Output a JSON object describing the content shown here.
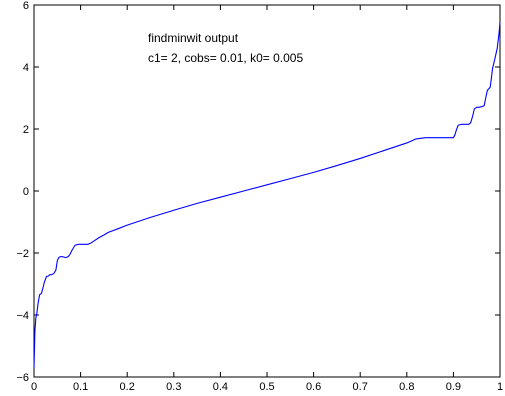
{
  "chart_data": {
    "type": "line",
    "title": "",
    "xlabel": "",
    "ylabel": "",
    "xlim": [
      0,
      1
    ],
    "ylim": [
      -6,
      6
    ],
    "xticks": [
      0,
      0.1,
      0.2,
      0.3,
      0.4,
      0.5,
      0.6,
      0.7,
      0.8,
      0.9,
      1
    ],
    "xtick_labels": [
      "0",
      "0.1",
      "0.2",
      "0.3",
      "0.4",
      "0.5",
      "0.6",
      "0.7",
      "0.8",
      "0.9",
      "1"
    ],
    "yticks": [
      -6,
      -4,
      -2,
      0,
      2,
      4,
      6
    ],
    "ytick_labels": [
      "−6",
      "−4",
      "−2",
      "0",
      "2",
      "4",
      "6"
    ],
    "grid": false,
    "annotations": [
      "findminwit output",
      "c1= 2, cobs= 0.01, k0= 0.005"
    ],
    "series": [
      {
        "color": "#0000ff",
        "x": [
          0.0,
          0.002,
          0.004,
          0.006,
          0.009,
          0.012,
          0.016,
          0.018,
          0.022,
          0.027,
          0.03,
          0.034,
          0.038,
          0.043,
          0.047,
          0.05,
          0.053,
          0.056,
          0.062,
          0.068,
          0.073,
          0.077,
          0.082,
          0.088,
          0.095,
          0.105,
          0.115,
          0.122,
          0.13,
          0.14,
          0.15,
          0.16,
          0.18,
          0.2,
          0.25,
          0.3,
          0.35,
          0.4,
          0.45,
          0.5,
          0.55,
          0.6,
          0.65,
          0.7,
          0.75,
          0.8,
          0.82,
          0.84,
          0.85,
          0.86,
          0.87,
          0.88,
          0.89,
          0.9,
          0.903,
          0.906,
          0.91,
          0.917,
          0.922,
          0.927,
          0.933,
          0.937,
          0.941,
          0.945,
          0.95,
          0.955,
          0.96,
          0.966,
          0.97,
          0.973,
          0.976,
          0.979,
          0.982,
          0.984,
          0.988,
          0.991,
          0.994,
          0.996,
          0.998,
          1.0
        ],
        "y": [
          -5.7,
          -4.5,
          -4.1,
          -3.95,
          -3.6,
          -3.35,
          -3.3,
          -3.2,
          -2.95,
          -2.75,
          -2.75,
          -2.7,
          -2.7,
          -2.65,
          -2.55,
          -2.25,
          -2.15,
          -2.12,
          -2.12,
          -2.15,
          -2.12,
          -2.05,
          -1.9,
          -1.75,
          -1.72,
          -1.72,
          -1.72,
          -1.68,
          -1.6,
          -1.5,
          -1.42,
          -1.33,
          -1.22,
          -1.1,
          -0.85,
          -0.62,
          -0.4,
          -0.2,
          0.0,
          0.2,
          0.4,
          0.6,
          0.82,
          1.05,
          1.3,
          1.55,
          1.68,
          1.72,
          1.72,
          1.72,
          1.72,
          1.72,
          1.72,
          1.72,
          1.8,
          1.95,
          2.12,
          2.15,
          2.15,
          2.15,
          2.15,
          2.2,
          2.4,
          2.65,
          2.7,
          2.7,
          2.72,
          2.75,
          3.05,
          3.25,
          3.3,
          3.35,
          3.7,
          3.95,
          4.2,
          4.4,
          4.6,
          4.85,
          5.1,
          5.45
        ]
      }
    ]
  }
}
